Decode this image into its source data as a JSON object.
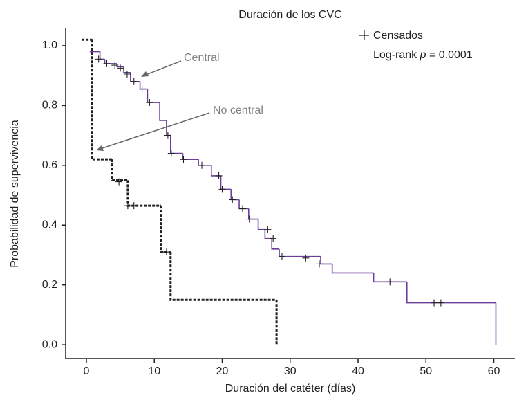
{
  "chart_data": {
    "type": "survival",
    "title": "Duración de los CVC",
    "xlabel": "Duración del catéter (días)",
    "ylabel": "Probabilidad de supervivencia",
    "xlim": [
      -3.05,
      63.1
    ],
    "ylim": [
      -0.046,
      1.06
    ],
    "xticks": [
      0,
      10,
      20,
      30,
      40,
      50,
      60
    ],
    "yticks": [
      {
        "value": 0,
        "label": "0.0"
      },
      {
        "value": 0.2,
        "label": "0.2"
      },
      {
        "value": 0.4,
        "label": "0.4"
      },
      {
        "value": 0.6,
        "label": "0.6"
      },
      {
        "value": 0.8,
        "label": "0.8"
      },
      {
        "value": 1,
        "label": "1.0"
      }
    ],
    "censored_label": "Censados",
    "note": [
      "Log-rank ",
      "p",
      " = 0.0001"
    ],
    "series": [
      {
        "name": "Central",
        "color": "#6a3d9a",
        "dashed": false,
        "x": [
          0.5,
          2.0,
          2.7,
          4.5,
          5.5,
          6.5,
          7.9,
          9.0,
          10.8,
          11.8,
          12.4,
          14.2,
          16.5,
          18.4,
          19.8,
          21.3,
          22.5,
          23.9,
          25.3,
          26.3,
          27.3,
          28.4,
          34.5,
          36.2,
          42.3,
          47.2,
          60.3
        ],
        "values": [
          0.98,
          0.955,
          0.94,
          0.93,
          0.91,
          0.88,
          0.855,
          0.81,
          0.75,
          0.7,
          0.64,
          0.62,
          0.6,
          0.565,
          0.52,
          0.485,
          0.455,
          0.42,
          0.385,
          0.355,
          0.32,
          0.295,
          0.27,
          0.24,
          0.21,
          0.14,
          0.0
        ],
        "censored": {
          "x": [
            1.8,
            3.0,
            4.2,
            5.0,
            6.0,
            7.0,
            8.2,
            9.3,
            12.0,
            12.5,
            14.3,
            17.0,
            19.5,
            20.0,
            21.5,
            23.0,
            24.0,
            26.7,
            27.5,
            28.8,
            32.3,
            34.3,
            44.7,
            51.2,
            52.2
          ],
          "values": [
            0.955,
            0.94,
            0.935,
            0.925,
            0.905,
            0.88,
            0.855,
            0.81,
            0.7,
            0.64,
            0.62,
            0.6,
            0.565,
            0.52,
            0.485,
            0.455,
            0.42,
            0.385,
            0.355,
            0.295,
            0.29,
            0.27,
            0.21,
            0.14,
            0.14
          ]
        }
      },
      {
        "name": "No central",
        "color": "#231f20",
        "dashed": true,
        "x": [
          -0.7,
          0.8,
          3.8,
          6.1,
          11.0,
          12.4,
          28.0
        ],
        "values": [
          1.02,
          0.62,
          0.55,
          0.465,
          0.31,
          0.15,
          0.0
        ],
        "censored": {
          "x": [
            4.8,
            6.1,
            7.0,
            11.8
          ],
          "values": [
            0.545,
            0.465,
            0.465,
            0.31
          ]
        }
      }
    ]
  }
}
